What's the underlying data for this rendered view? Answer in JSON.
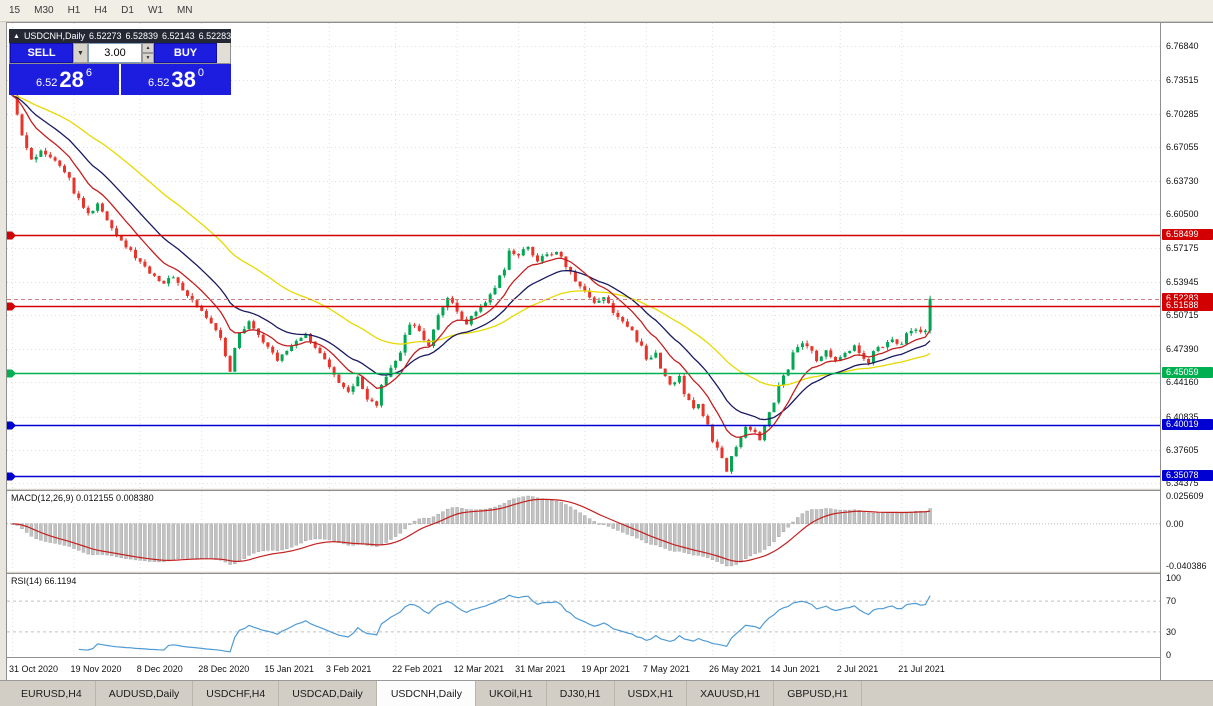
{
  "toolbar": {
    "timeframes": [
      "15",
      "M30",
      "H1",
      "H4",
      "D1",
      "W1",
      "MN"
    ]
  },
  "title_bar": {
    "collapse_icon": "▲",
    "symbol_label": "USDCNH,Daily",
    "open": "6.52273",
    "high": "6.52839",
    "low": "6.52143",
    "close": "6.52283"
  },
  "trade_panel": {
    "sell_label": "SELL",
    "buy_label": "BUY",
    "volume": "3.00",
    "dropdown_icon": "▼",
    "spin_up_icon": "▲",
    "spin_down_icon": "▼",
    "sell_price": {
      "prefix": "6.52",
      "big": "28",
      "sup": "6"
    },
    "buy_price": {
      "prefix": "6.52",
      "big": "38",
      "sup": "0"
    }
  },
  "chart_data": {
    "type": "candlestick",
    "symbol": "USDCNH",
    "timeframe": "Daily",
    "x_labels": [
      "31 Oct 2020",
      "19 Nov 2020",
      "8 Dec 2020",
      "28 Dec 2020",
      "15 Jan 2021",
      "3 Feb 2021",
      "22 Feb 2021",
      "12 Mar 2021",
      "31 Mar 2021",
      "19 Apr 2021",
      "7 May 2021",
      "26 May 2021",
      "14 Jun 2021",
      "2 Jul 2021",
      "21 Jul 2021"
    ],
    "x_label_candle_idx": [
      0,
      13,
      27,
      40,
      54,
      67,
      81,
      94,
      107,
      121,
      134,
      148,
      161,
      175,
      188
    ],
    "y_grid_labels": [
      "6.76840",
      "6.73515",
      "6.70285",
      "6.67055",
      "6.63730",
      "6.60500",
      "6.57175",
      "6.53945",
      "6.50715",
      "6.47390",
      "6.44160",
      "6.40835",
      "6.37605",
      "6.34375"
    ],
    "price_range": [
      6.3389,
      6.7908
    ],
    "price_tags": [
      {
        "text": "6.58499",
        "price": 6.58499,
        "color": "#d20000"
      },
      {
        "text": "6.52283",
        "price": 6.52283,
        "color": "#d20000"
      },
      {
        "text": "6.51588",
        "price": 6.51588,
        "color": "#d20000"
      },
      {
        "text": "6.45059",
        "price": 6.45059,
        "color": "#00b050"
      },
      {
        "text": "6.40019",
        "price": 6.40019,
        "color": "#0000d2"
      },
      {
        "text": "6.35078",
        "price": 6.35078,
        "color": "#0000d2"
      }
    ],
    "h_lines": [
      {
        "price": 6.58499,
        "color": "#d20000",
        "width": 1.4
      },
      {
        "price": 6.51588,
        "color": "#d20000",
        "width": 1.4
      },
      {
        "price": 6.45059,
        "color": "#00b050",
        "width": 1.4
      },
      {
        "price": 6.40019,
        "color": "#0000d2",
        "width": 1.4
      },
      {
        "price": 6.35078,
        "color": "#0000d2",
        "width": 1.4
      }
    ],
    "current_price": 6.52283,
    "num_candles": 195,
    "trend_anchors": [
      [
        0,
        6.718
      ],
      [
        2,
        6.682
      ],
      [
        4,
        6.656
      ],
      [
        6,
        6.668
      ],
      [
        8,
        6.661
      ],
      [
        10,
        6.654
      ],
      [
        12,
        6.642
      ],
      [
        13,
        6.627
      ],
      [
        15,
        6.612
      ],
      [
        16,
        6.605
      ],
      [
        18,
        6.614
      ],
      [
        20,
        6.6
      ],
      [
        22,
        6.586
      ],
      [
        24,
        6.574
      ],
      [
        27,
        6.558
      ],
      [
        30,
        6.545
      ],
      [
        32,
        6.538
      ],
      [
        34,
        6.545
      ],
      [
        36,
        6.532
      ],
      [
        38,
        6.52
      ],
      [
        40,
        6.511
      ],
      [
        42,
        6.5
      ],
      [
        44,
        6.487
      ],
      [
        45,
        6.468
      ],
      [
        46,
        6.452
      ],
      [
        47,
        6.475
      ],
      [
        48,
        6.49
      ],
      [
        50,
        6.499
      ],
      [
        52,
        6.486
      ],
      [
        54,
        6.476
      ],
      [
        56,
        6.463
      ],
      [
        58,
        6.472
      ],
      [
        60,
        6.482
      ],
      [
        62,
        6.49
      ],
      [
        64,
        6.476
      ],
      [
        67,
        6.455
      ],
      [
        69,
        6.44
      ],
      [
        71,
        6.432
      ],
      [
        73,
        6.445
      ],
      [
        75,
        6.425
      ],
      [
        77,
        6.417
      ],
      [
        78,
        6.438
      ],
      [
        80,
        6.455
      ],
      [
        82,
        6.472
      ],
      [
        84,
        6.499
      ],
      [
        86,
        6.49
      ],
      [
        88,
        6.478
      ],
      [
        90,
        6.508
      ],
      [
        92,
        6.524
      ],
      [
        94,
        6.51
      ],
      [
        96,
        6.5
      ],
      [
        98,
        6.51
      ],
      [
        100,
        6.52
      ],
      [
        102,
        6.535
      ],
      [
        104,
        6.553
      ],
      [
        105,
        6.568
      ],
      [
        107,
        6.564
      ],
      [
        109,
        6.574
      ],
      [
        111,
        6.56
      ],
      [
        113,
        6.565
      ],
      [
        115,
        6.569
      ],
      [
        117,
        6.555
      ],
      [
        119,
        6.541
      ],
      [
        121,
        6.53
      ],
      [
        123,
        6.52
      ],
      [
        125,
        6.525
      ],
      [
        127,
        6.511
      ],
      [
        129,
        6.5
      ],
      [
        131,
        6.49
      ],
      [
        133,
        6.476
      ],
      [
        134,
        6.462
      ],
      [
        136,
        6.47
      ],
      [
        137,
        6.456
      ],
      [
        139,
        6.44
      ],
      [
        141,
        6.446
      ],
      [
        142,
        6.43
      ],
      [
        144,
        6.416
      ],
      [
        145,
        6.421
      ],
      [
        147,
        6.401
      ],
      [
        148,
        6.386
      ],
      [
        150,
        6.366
      ],
      [
        151,
        6.357
      ],
      [
        152,
        6.369
      ],
      [
        154,
        6.389
      ],
      [
        155,
        6.399
      ],
      [
        157,
        6.394
      ],
      [
        158,
        6.386
      ],
      [
        159,
        6.399
      ],
      [
        161,
        6.424
      ],
      [
        162,
        6.439
      ],
      [
        164,
        6.455
      ],
      [
        165,
        6.469
      ],
      [
        167,
        6.479
      ],
      [
        169,
        6.471
      ],
      [
        170,
        6.462
      ],
      [
        172,
        6.474
      ],
      [
        173,
        6.467
      ],
      [
        174,
        6.461
      ],
      [
        176,
        6.471
      ],
      [
        178,
        6.477
      ],
      [
        179,
        6.468
      ],
      [
        181,
        6.461
      ],
      [
        182,
        6.471
      ],
      [
        184,
        6.477
      ],
      [
        186,
        6.484
      ],
      [
        188,
        6.478
      ],
      [
        189,
        6.487
      ],
      [
        191,
        6.494
      ],
      [
        192,
        6.489
      ],
      [
        193,
        6.492
      ],
      [
        194,
        6.522
      ]
    ],
    "moving_averages": [
      {
        "name": "ma-slow-yellow",
        "period": 45,
        "color": "#e8d900"
      },
      {
        "name": "ma-mid-navy",
        "period": 20,
        "color": "#1a1a60"
      },
      {
        "name": "ma-fast-red",
        "period": 10,
        "color": "#c42020"
      }
    ],
    "colors": {
      "up": "#00a651",
      "down": "#e8342a",
      "grid": "#e0e0e0",
      "bg": "#ffffff"
    }
  },
  "macd_panel": {
    "label": "MACD(12,26,9) 0.012155 0.008380",
    "params": [
      12,
      26,
      9
    ],
    "values": [
      "0.012155",
      "0.008380"
    ],
    "axis_labels": [
      "0.025609",
      "0.00",
      "-0.040386"
    ],
    "hist_color": "#c2c2c2",
    "signal_color": "#c42020"
  },
  "rsi_panel": {
    "label": "RSI(14) 66.1194",
    "period": 14,
    "current": "66.1194",
    "axis_labels": [
      "100",
      "70",
      "30",
      "0"
    ],
    "axis_values": [
      100,
      70,
      30,
      0
    ],
    "levels": [
      70,
      30
    ],
    "line_color": "#4f9bd5"
  },
  "tabs": {
    "items": [
      "EURUSD,H4",
      "AUDUSD,Daily",
      "USDCHF,H4",
      "USDCAD,Daily",
      "USDCNH,Daily",
      "UKOil,H1",
      "DJ30,H1",
      "USDX,H1",
      "XAUUSD,H1",
      "GBPUSD,H1"
    ],
    "active_index": 4
  }
}
